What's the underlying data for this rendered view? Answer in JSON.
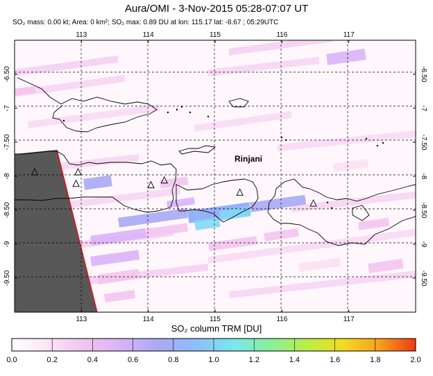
{
  "header": {
    "title": "Aura/OMI - 3-Nov-2015 05:28-07:07 UT",
    "subtitle": "SO₂ mass: 0.00 kt; Area: 0 km²; SO₂ max: 0.89 DU at lon: 115.17 lat: -8.67 ; 05:29UTC"
  },
  "map": {
    "lon_range": [
      112,
      118
    ],
    "lat_range": [
      -10,
      -6
    ],
    "lon_ticks": [
      "113",
      "114",
      "115",
      "116",
      "117"
    ],
    "lat_ticks": [
      "-6.50",
      "-7",
      "-7.50",
      "-8",
      "-8.50",
      "-9",
      "-9.50"
    ],
    "volcano_label": "Rinjani",
    "volcanoes": [
      {
        "lon": 112.3,
        "lat": -7.94
      },
      {
        "lon": 112.95,
        "lat": -7.94
      },
      {
        "lon": 112.92,
        "lat": -8.11
      },
      {
        "lon": 114.04,
        "lat": -8.13
      },
      {
        "lon": 114.24,
        "lat": -8.06
      },
      {
        "lon": 115.37,
        "lat": -8.24
      },
      {
        "lon": 116.47,
        "lat": -8.4
      }
    ],
    "colors": {
      "no_data": "#585858",
      "swath_edge": "#ff0000",
      "light_pink": "#fbe0f3",
      "pink": "#f4c4ef",
      "violet": "#d9b3f8",
      "blue_violet": "#a8a8f4",
      "blue": "#8aa8f8",
      "cyan": "#82d8f6"
    }
  },
  "colorbar": {
    "title": "SO₂ column TRM [DU]",
    "ticks": [
      "0.0",
      "0.2",
      "0.4",
      "0.6",
      "0.8",
      "1.0",
      "1.2",
      "1.4",
      "1.6",
      "1.8",
      "2.0"
    ],
    "stops": [
      "#ffffff",
      "#fbe3f5",
      "#f0c4ef",
      "#d8b3f8",
      "#a9a9f6",
      "#8ebdf8",
      "#7ae6f0",
      "#86ef9f",
      "#b8ee4a",
      "#f2dc20",
      "#f7a020",
      "#ef3a12"
    ]
  }
}
